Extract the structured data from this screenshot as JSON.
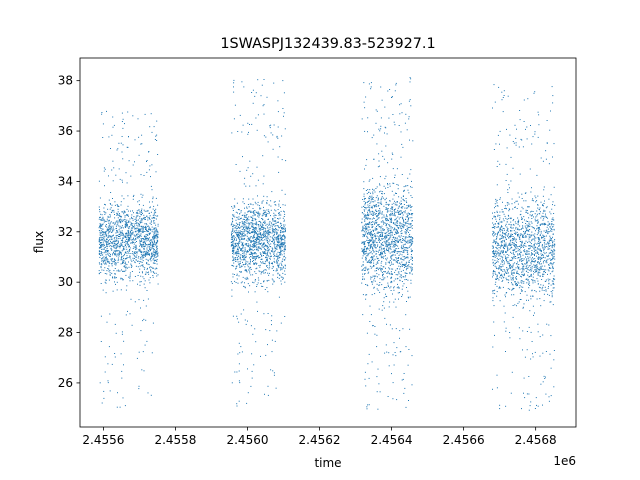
{
  "chart_data": {
    "type": "scatter",
    "title": "1SWASPJ132439.83-523927.1",
    "xlabel": "time",
    "ylabel": "flux",
    "x_offset_label": "1e6",
    "xlim": [
      2455535,
      2456912
    ],
    "ylim": [
      24.25,
      38.9
    ],
    "x_ticks": [
      2455600,
      2455800,
      2456000,
      2456200,
      2456400,
      2456600,
      2456800
    ],
    "x_tick_labels": [
      "2.4556",
      "2.4558",
      "2.4560",
      "2.4562",
      "2.4564",
      "2.4566",
      "2.4568"
    ],
    "y_ticks": [
      26,
      28,
      30,
      32,
      34,
      36,
      38
    ],
    "y_tick_labels": [
      "26",
      "28",
      "30",
      "32",
      "34",
      "36",
      "38"
    ],
    "grid": false,
    "marker_color": "#1f77b4",
    "seasons": [
      {
        "x_start": 2455588,
        "x_end": 2455752,
        "core_low": 29.5,
        "core_high": 33.8,
        "outlier_low": 25.0,
        "outlier_high": 36.8
      },
      {
        "x_start": 2455955,
        "x_end": 2456106,
        "core_low": 29.5,
        "core_high": 33.8,
        "outlier_low": 25.0,
        "outlier_high": 38.1
      },
      {
        "x_start": 2456317,
        "x_end": 2456459,
        "core_low": 28.8,
        "core_high": 34.8,
        "outlier_low": 24.9,
        "outlier_high": 38.2
      },
      {
        "x_start": 2456680,
        "x_end": 2456853,
        "core_low": 28.5,
        "core_high": 34.2,
        "outlier_low": 24.9,
        "outlier_high": 37.9
      }
    ]
  }
}
